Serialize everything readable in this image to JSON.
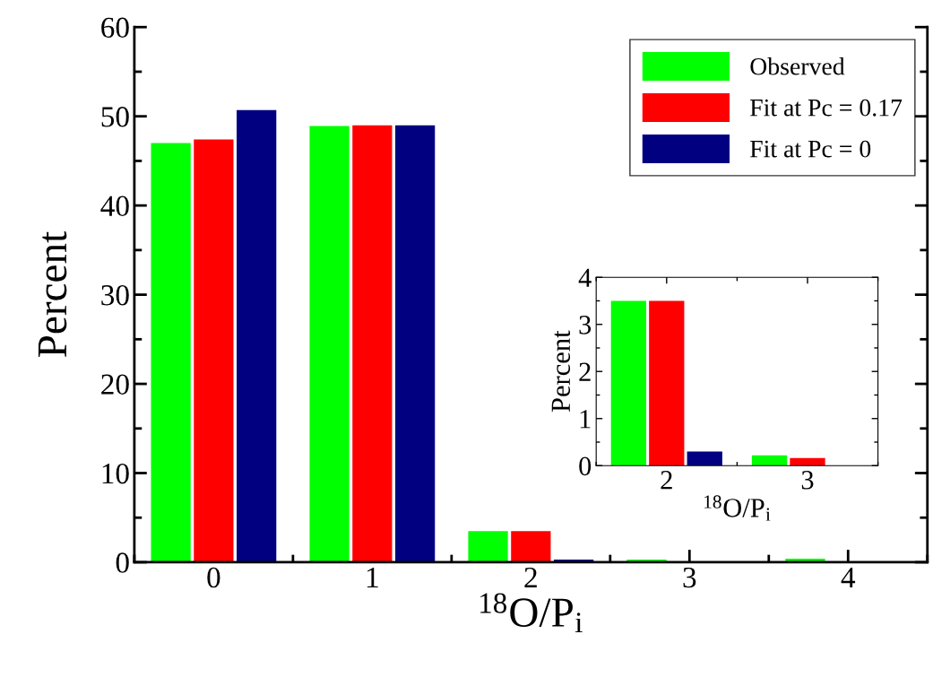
{
  "chart_data": [
    {
      "type": "bar",
      "xlabel": "$^{18}$O/P$_{i}$",
      "ylabel": "Percent",
      "x": [
        0,
        1,
        2,
        3,
        4
      ],
      "xlim": [
        -0.5,
        4.5
      ],
      "xticks": [
        0,
        1,
        2,
        3,
        4
      ],
      "ylim": [
        0,
        60
      ],
      "yticks": [
        0,
        10,
        20,
        30,
        40,
        50,
        60
      ],
      "legend": "top right",
      "grid": false,
      "series": [
        {
          "name": "Observed",
          "color": "#00ff00",
          "values": [
            47.0,
            48.9,
            3.5,
            0.3,
            0.4
          ]
        },
        {
          "name": "Fit at Pc = 0.17",
          "color": "#ff0000",
          "values": [
            47.4,
            49.0,
            3.5,
            null,
            0
          ]
        },
        {
          "name": "Fit at Pc = 0",
          "color": "#000080",
          "values": [
            50.7,
            49.0,
            0.3,
            0,
            0
          ]
        }
      ]
    },
    {
      "type": "bar",
      "xlabel": "$^{18}$O/P$_{i}$",
      "ylabel": "Percent",
      "x": [
        2,
        3
      ],
      "xlim": [
        1.5,
        3.5
      ],
      "xticks": [
        2,
        3
      ],
      "ylim": [
        0,
        4
      ],
      "yticks": [
        0,
        1,
        2,
        3,
        4
      ],
      "legend": false,
      "grid": false,
      "series": [
        {
          "color": "#00ff00",
          "values": [
            3.5,
            0.22
          ]
        },
        {
          "color": "#ff0000",
          "values": [
            3.5,
            0.16
          ]
        },
        {
          "color": "#000080",
          "values": [
            0.3,
            0
          ]
        }
      ]
    }
  ]
}
